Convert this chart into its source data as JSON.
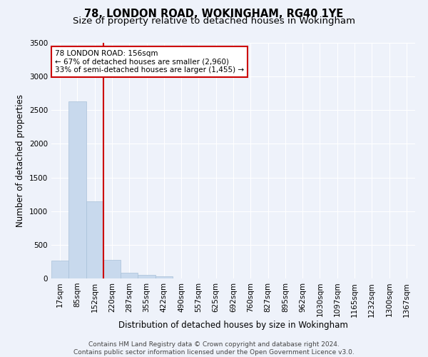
{
  "title1": "78, LONDON ROAD, WOKINGHAM, RG40 1YE",
  "title2": "Size of property relative to detached houses in Wokingham",
  "xlabel": "Distribution of detached houses by size in Wokingham",
  "ylabel": "Number of detached properties",
  "footer1": "Contains HM Land Registry data © Crown copyright and database right 2024.",
  "footer2": "Contains public sector information licensed under the Open Government Licence v3.0.",
  "annotation_title": "78 LONDON ROAD: 156sqm",
  "annotation_line1": "← 67% of detached houses are smaller (2,960)",
  "annotation_line2": "33% of semi-detached houses are larger (1,455) →",
  "bar_labels": [
    "17sqm",
    "85sqm",
    "152sqm",
    "220sqm",
    "287sqm",
    "355sqm",
    "422sqm",
    "490sqm",
    "557sqm",
    "625sqm",
    "692sqm",
    "760sqm",
    "827sqm",
    "895sqm",
    "962sqm",
    "1030sqm",
    "1097sqm",
    "1165sqm",
    "1232sqm",
    "1300sqm",
    "1367sqm"
  ],
  "bar_values": [
    270,
    2630,
    1150,
    280,
    90,
    50,
    35,
    0,
    0,
    0,
    0,
    0,
    0,
    0,
    0,
    0,
    0,
    0,
    0,
    0,
    0
  ],
  "bar_color": "#c8d9ed",
  "bar_edge_color": "#a8c0d8",
  "vline_color": "#cc0000",
  "vline_x": 2.5,
  "ylim": [
    0,
    3500
  ],
  "yticks": [
    0,
    500,
    1000,
    1500,
    2000,
    2500,
    3000,
    3500
  ],
  "bg_color": "#eef2fa",
  "grid_color": "#ffffff",
  "annotation_box_color": "#ffffff",
  "annotation_box_edge": "#cc0000",
  "title1_fontsize": 10.5,
  "title2_fontsize": 9.5,
  "axis_label_fontsize": 8.5,
  "tick_fontsize": 7.5,
  "annotation_fontsize": 7.5,
  "footer_fontsize": 6.5
}
